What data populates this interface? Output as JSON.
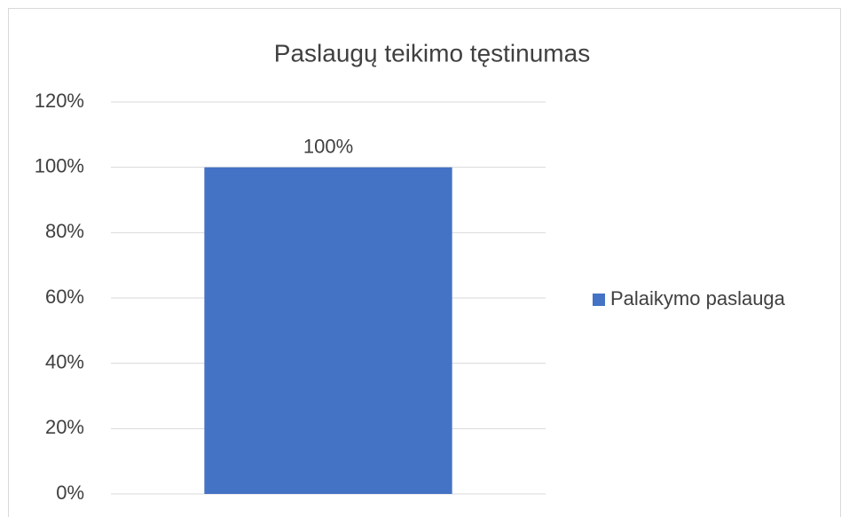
{
  "chart_data": {
    "type": "bar",
    "title": "Paslaugų teikimo tęstinumas",
    "categories": [
      null
    ],
    "series": [
      {
        "name": "Palaikymo paslauga",
        "color": "#4472c4",
        "values": [
          100
        ],
        "value_labels": [
          "100%"
        ]
      }
    ],
    "ylim": [
      0,
      120
    ],
    "yticks": [
      {
        "value": 0,
        "label": "0%"
      },
      {
        "value": 20,
        "label": "20%"
      },
      {
        "value": 40,
        "label": "40%"
      },
      {
        "value": 60,
        "label": "60%"
      },
      {
        "value": 80,
        "label": "80%"
      },
      {
        "value": 100,
        "label": "100%"
      },
      {
        "value": 120,
        "label": "120%"
      }
    ],
    "grid": true,
    "legend": "right"
  }
}
